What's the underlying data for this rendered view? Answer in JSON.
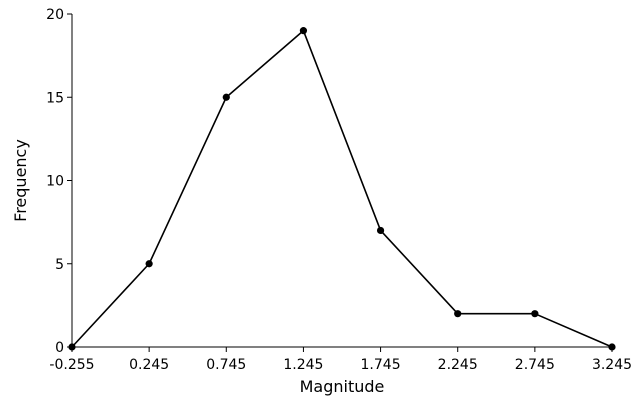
{
  "chart_data": {
    "type": "line",
    "xlabel": "Magnitude",
    "ylabel": "Frequency",
    "x": [
      -0.255,
      0.245,
      0.745,
      1.245,
      1.745,
      2.245,
      2.745,
      3.245
    ],
    "x_tick_labels": [
      "-0.255",
      "0.245",
      "0.745",
      "1.245",
      "1.745",
      "2.245",
      "2.745",
      "3.245"
    ],
    "series": [
      {
        "values": [
          0,
          5,
          15,
          19,
          7,
          2,
          2,
          0
        ]
      }
    ],
    "y_ticks": [
      0,
      5,
      10,
      15,
      20
    ],
    "xlim": [
      -0.255,
      3.245
    ],
    "ylim": [
      0,
      20
    ],
    "grid": false,
    "markers": true,
    "line_color": "#000000"
  }
}
